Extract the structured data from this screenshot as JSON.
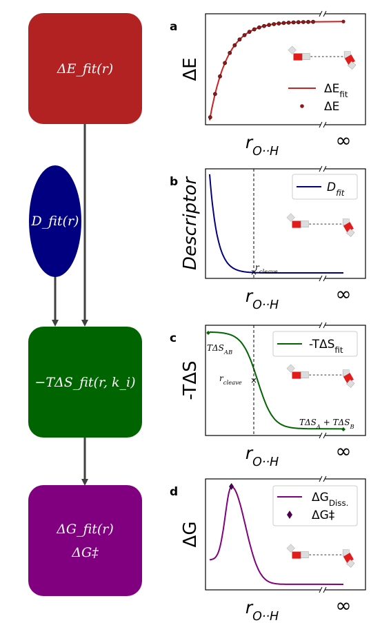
{
  "flow": {
    "box_energy": {
      "label": "ΔE_fit(r)",
      "color": "#b22222"
    },
    "box_descriptor": {
      "label": "D_fit(r)",
      "color": "#000080"
    },
    "box_entropy": {
      "label": "−TΔS_fit(r, k_i)",
      "color": "#006400"
    },
    "box_free_energy": {
      "label1": "ΔG_fit(r)",
      "label2": "ΔG‡",
      "color": "#800080"
    },
    "arrow_color": "#404040"
  },
  "panels": [
    {
      "letter": "a",
      "ylabel": "ΔE",
      "xlabel": "r_O··H",
      "inf": "∞",
      "legend": [
        {
          "kind": "line",
          "label": "ΔE_fit",
          "color": "#cc2020"
        },
        {
          "kind": "dot",
          "label": "ΔE",
          "color": "#8b1a1a"
        }
      ]
    },
    {
      "letter": "b",
      "ylabel": "Descriptor",
      "xlabel": "r_O··H",
      "inf": "∞",
      "annotation": "r_cleave",
      "legend": [
        {
          "kind": "line",
          "label": "D_fit",
          "color": "#000080"
        }
      ]
    },
    {
      "letter": "c",
      "ylabel": "-TΔS",
      "xlabel": "r_O··H",
      "inf": "∞",
      "annotation": "r_cleave",
      "start_label": "TΔS_AB",
      "end_label": "TΔS_A + TΔS_B",
      "legend": [
        {
          "kind": "line",
          "label": "-TΔS_fit",
          "color": "#006400"
        }
      ]
    },
    {
      "letter": "d",
      "ylabel": "ΔG",
      "xlabel": "r_O··H",
      "inf": "∞",
      "legend": [
        {
          "kind": "line",
          "label": "ΔG_Diss.",
          "color": "#800080"
        },
        {
          "kind": "diamond",
          "label": "ΔG‡",
          "color": "#4b0050"
        }
      ]
    }
  ]
}
